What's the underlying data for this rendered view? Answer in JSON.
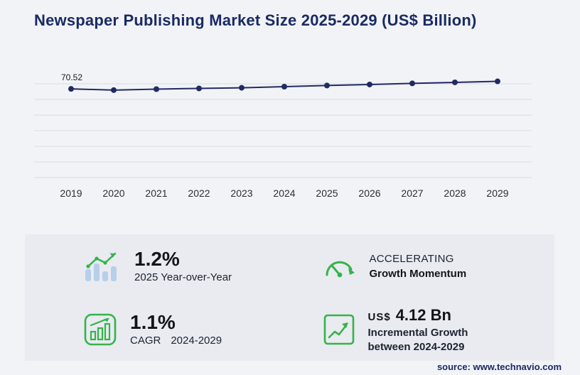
{
  "title": "Newspaper Publishing Market Size 2025-2029 (US$ Billion)",
  "source": "source: www.technavio.com",
  "chart_data": {
    "type": "line",
    "title": "Newspaper Publishing Market Size 2025-2029 (US$ Billion)",
    "x": [
      2019,
      2020,
      2021,
      2022,
      2023,
      2024,
      2025,
      2026,
      2027,
      2028,
      2029
    ],
    "values": [
      70.52,
      69.6,
      70.35,
      70.9,
      71.4,
      72.28,
      73.15,
      73.95,
      74.8,
      75.6,
      76.4
    ],
    "first_value_label": "70.52",
    "xlabel": "",
    "ylabel": "",
    "ylim": [
      0,
      80
    ],
    "grid": true,
    "legend": false,
    "line_color": "#212a63",
    "marker": "circle"
  },
  "stats": {
    "yoy": {
      "value": "1.2%",
      "label": "2025 Year-over-Year"
    },
    "momentum": {
      "line1": "ACCELERATING",
      "line2": "Growth Momentum"
    },
    "cagr": {
      "value": "1.1%",
      "label": "CAGR",
      "range": "2024-2029"
    },
    "incremental": {
      "currency": "US$",
      "value": "4.12 Bn",
      "line1": "Incremental Growth",
      "line2": "between 2024-2029"
    }
  },
  "icons": {
    "yoy": "bar-chart-growth-icon",
    "momentum": "speedometer-icon",
    "cagr": "bar-chart-box-icon",
    "incremental": "growth-arrow-box-icon"
  },
  "colors": {
    "navy": "#1a2a63",
    "green": "#35b34a",
    "light_blue": "#b7cfe9",
    "panel_bg": "#e9ebf0",
    "page_bg": "#f1f3f7",
    "grid": "#d8dce2"
  }
}
